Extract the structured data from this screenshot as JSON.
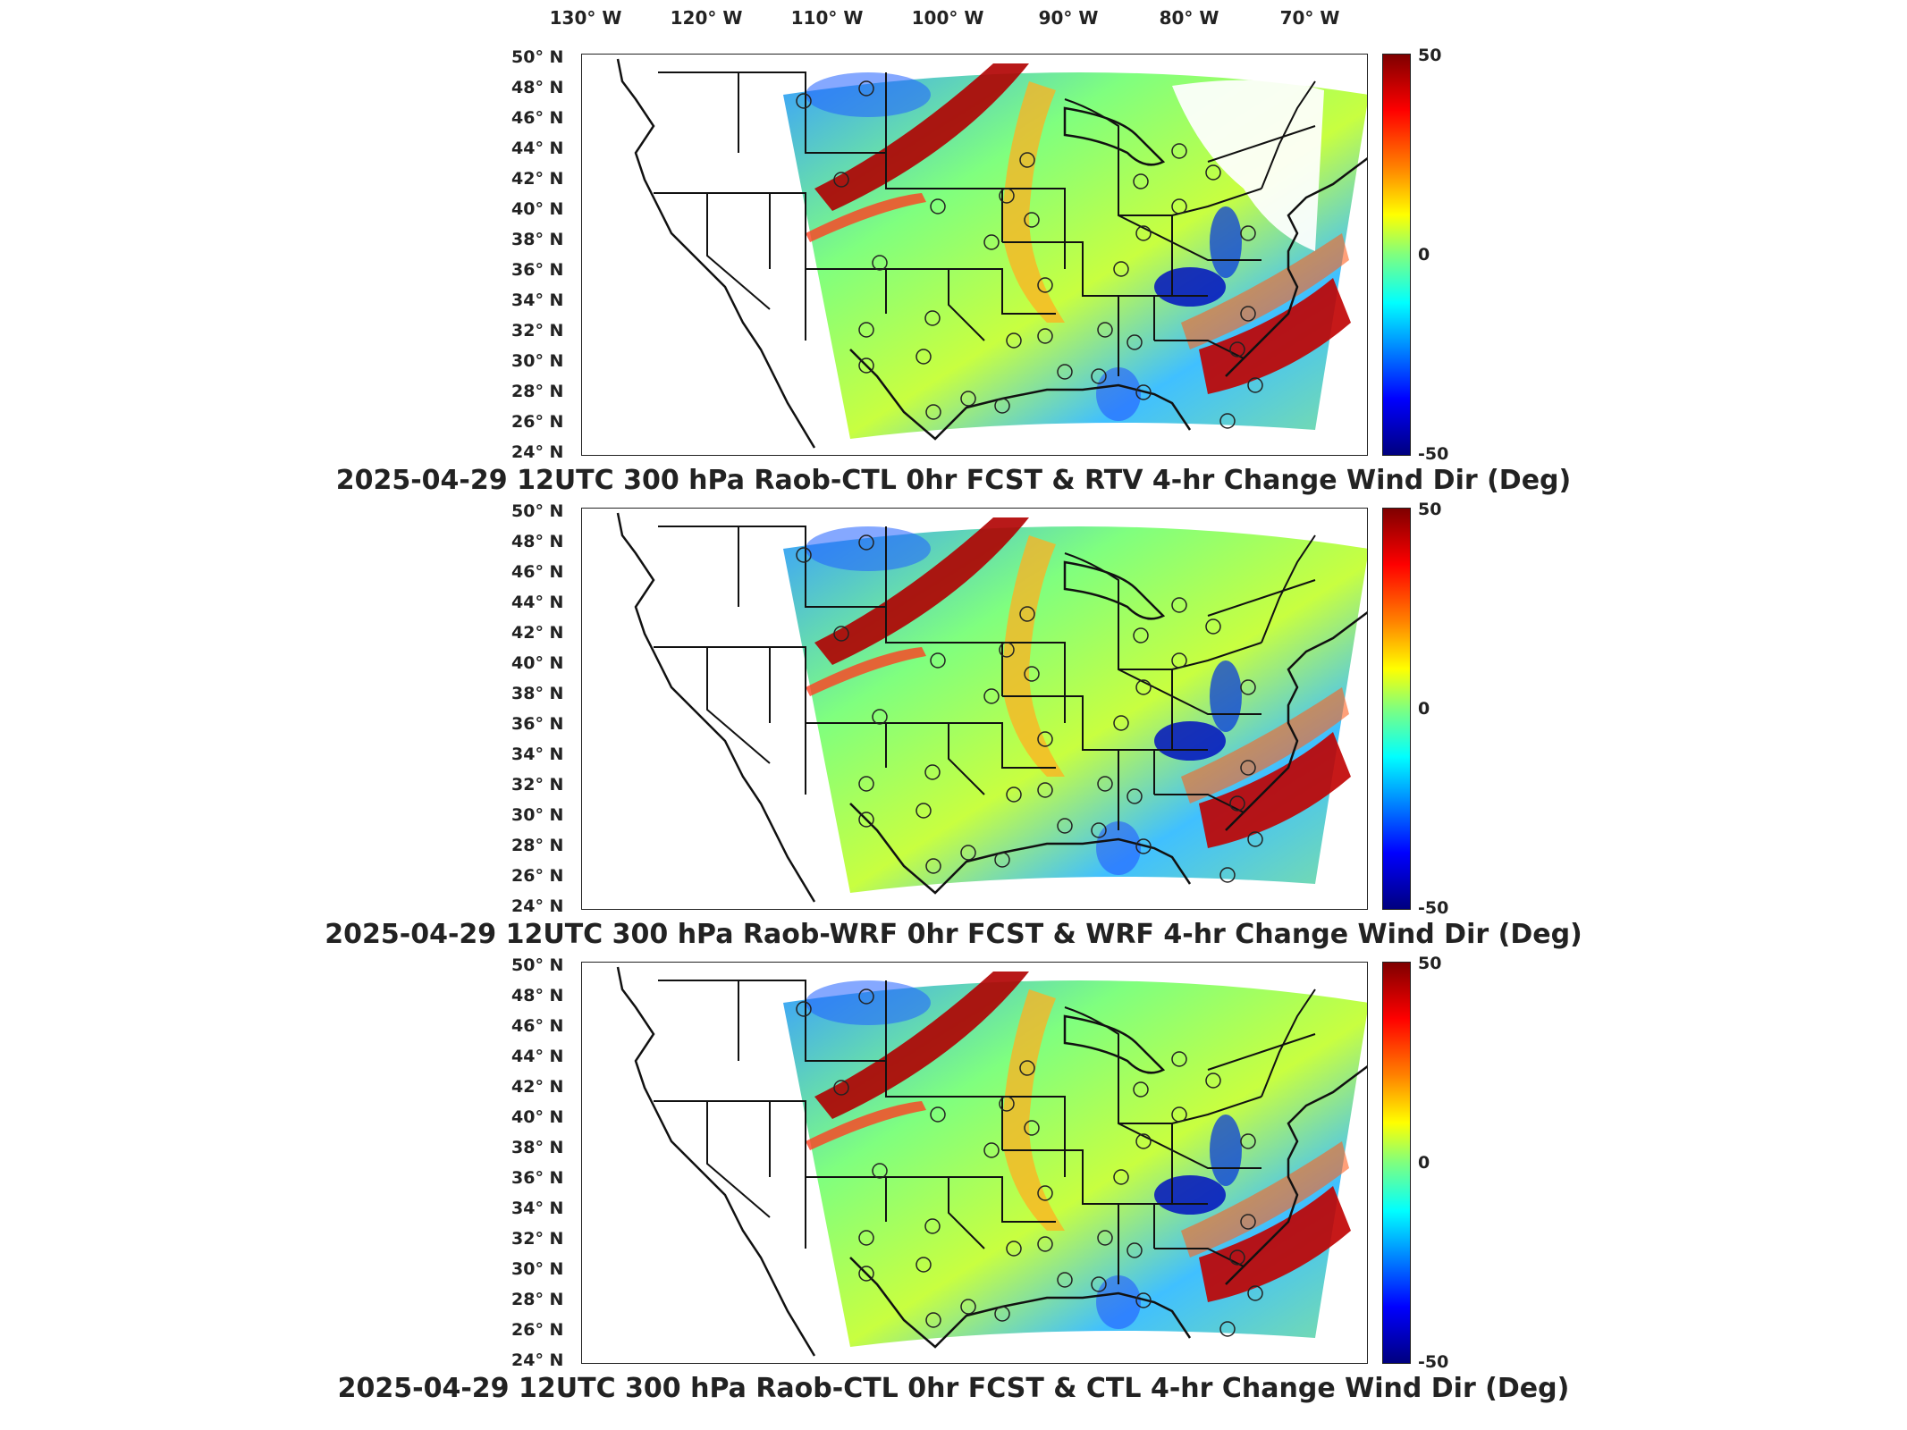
{
  "lon_labels": [
    "130° W",
    "120° W",
    "110° W",
    "100° W",
    "90° W",
    "80° W",
    "70° W"
  ],
  "lat_labels": [
    "50° N",
    "48° N",
    "46° N",
    "44° N",
    "42° N",
    "40° N",
    "38° N",
    "36° N",
    "34° N",
    "32° N",
    "30° N",
    "28° N",
    "26° N",
    "24° N"
  ],
  "colorbar": {
    "max": "50",
    "mid": "0",
    "min": "-50"
  },
  "panels": [
    {
      "title": "2025-04-29 12UTC 300 hPa Raob-CTL 0hr FCST & RTV 4-hr Change Wind Dir (Deg)"
    },
    {
      "title": "2025-04-29 12UTC 300 hPa Raob-WRF 0hr FCST & WRF 4-hr Change Wind Dir (Deg)"
    },
    {
      "title": "2025-04-29 12UTC 300 hPa Raob-CTL 0hr FCST & CTL 4-hr Change Wind Dir (Deg)"
    }
  ]
}
